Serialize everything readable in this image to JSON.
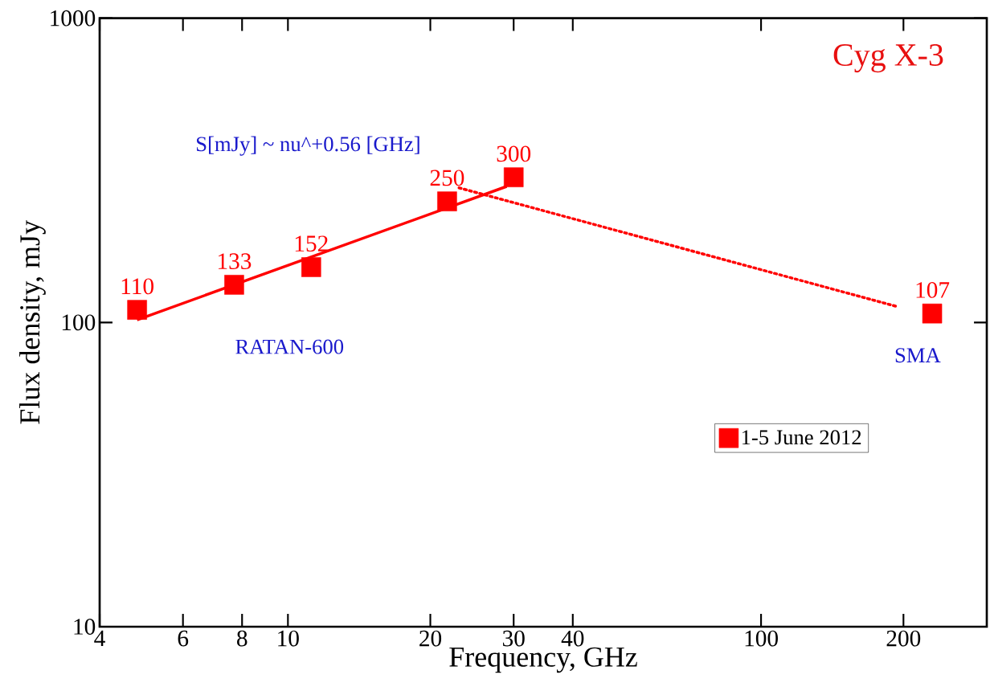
{
  "chart_data": {
    "type": "scatter",
    "title": "Cyg X-3",
    "xlabel": "Frequency, GHz",
    "ylabel": "Flux density, mJy",
    "log": "xy",
    "xlim": [
      4,
      300
    ],
    "ylim": [
      10,
      1000
    ],
    "xticks": [
      4,
      6,
      8,
      10,
      20,
      30,
      40,
      100,
      200
    ],
    "yticks": [
      10,
      100,
      1000
    ],
    "grid": false,
    "legend": "right",
    "series": [
      {
        "name": "1-5 June 2012",
        "marker": "square",
        "color": "#ff0000",
        "x": [
          4.8,
          7.7,
          11.2,
          21.7,
          30,
          230
        ],
        "values": [
          110,
          133,
          152,
          250,
          300,
          107
        ],
        "value_labels": [
          "110",
          "133",
          "152",
          "250",
          "300",
          "107"
        ]
      },
      {
        "type": "line",
        "line_style": "solid",
        "color": "#ff0000",
        "x": [
          4.8,
          29
        ],
        "values": [
          102,
          280
        ]
      },
      {
        "type": "line",
        "line_style": "dotted",
        "color": "#ff0000",
        "x": [
          23,
          193
        ],
        "values": [
          277,
          113
        ]
      }
    ],
    "annotations": [
      "S[mJy] ~ nu^+0.56 [GHz]",
      "RATAN-600",
      "SMA"
    ]
  }
}
